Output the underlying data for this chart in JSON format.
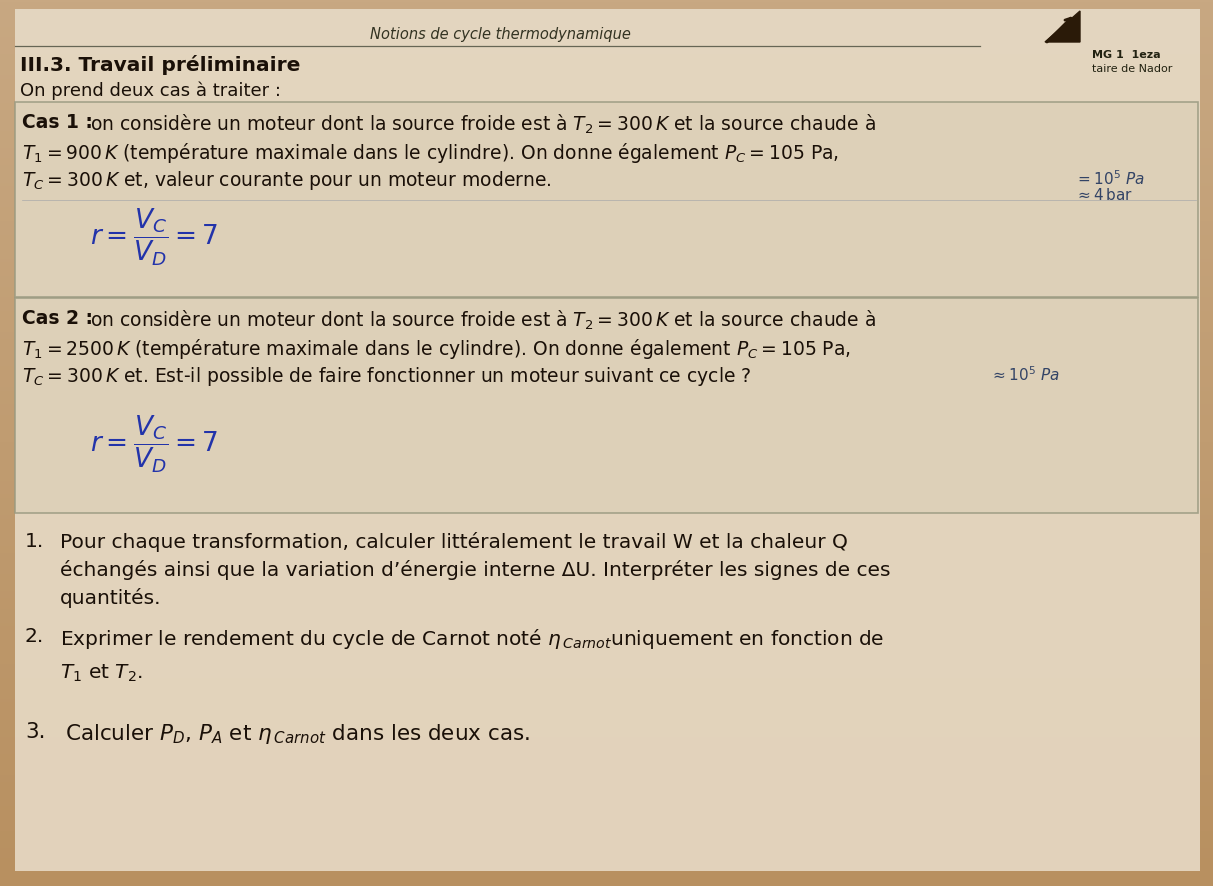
{
  "bg_top_color": "#c8a882",
  "bg_bottom_color": "#b89060",
  "page_bg": "#e8dcc8",
  "text_color": "#1a1008",
  "title_top": "Notions de cycle thermodynamique",
  "section_title": "III.3. Travail préliminaire",
  "intro_line": "On prend deux cas à traiter :",
  "logo_color": "#2a1a08",
  "school_line1": "MG 1  1eza",
  "school_line2": "taire de Nador",
  "box_bg": "#ddd0b8",
  "box_edge": "#999980",
  "handwrite_color": "#2233aa",
  "cas1_title": "Cas 1 :",
  "cas1_l1": "on considère un moteur dont la source froide est à $T_2 = 300\\,K$ et la source chaude à",
  "cas1_l2": "$T_1 = 900\\,K$ (température maximale dans le cylindre). On donne également $P_C = 105$ Pa,",
  "cas1_l3": "$T_C = 300\\,K$ et, valeur courante pour un moteur moderne.",
  "cas1_hw1": "$= 10^5$ Pa",
  "cas1_hw2": "$\\approx 4\\,\\mathrm{bar}$",
  "cas1_formula": "$r = \\dfrac{V_C}{V_D} = 7$",
  "cas2_title": "Cas 2 :",
  "cas2_l1": "on considère un moteur dont la source froide est à $T_2 = 300\\,K$ et la source chaude à",
  "cas2_l2": "$T_1 = 2500\\,K$ (température maximale dans le cylindre). On donne également $P_C = 105$ Pa,",
  "cas2_l3": "$T_C = 300\\,K$ et. Est-il possible de faire fonctionner un moteur suivant ce cycle ?",
  "cas2_hw3": "$\\approx 10^5$ Pa",
  "cas2_formula": "$r = \\dfrac{V_C}{V_D} = 7$",
  "q1a": "Pour chaque transformation, calculer littéralement le travail W et la chaleur Q",
  "q1b": "échangés ainsi que la variation d’énergie interne ΔU. Interpréter les signes de ces",
  "q1c": "quantités.",
  "q2a": "Exprimer le rendement du cycle de Carnot noté $\\eta_{\\,Carnot}$uniquement en fonction de",
  "q2b": "$T_1$ et $T_2$.",
  "q3": "Calculer $P_D$, $P_A$ et $\\eta_{\\,Carnot}$ dans les deux cas."
}
